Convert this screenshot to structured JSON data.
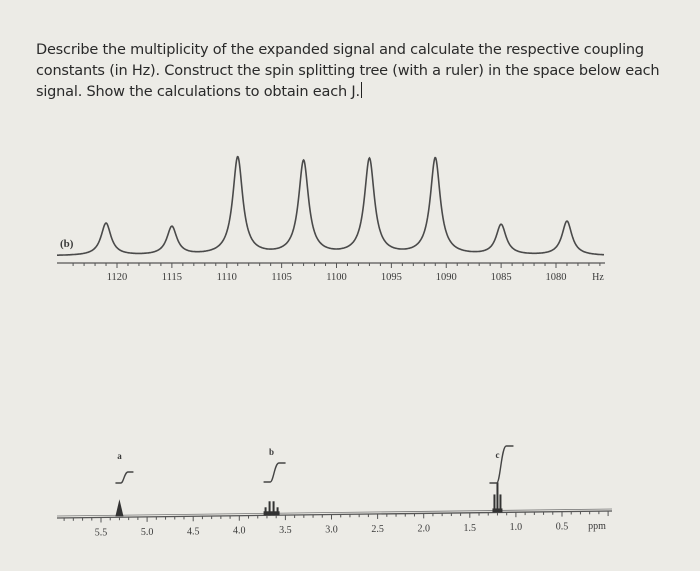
{
  "question": {
    "text": "Describe the multiplicity of the expanded signal and calculate the respective coupling constants (in Hz). Construct the spin splitting tree (with a ruler) in the space below each signal. Show the calculations to obtain each J."
  },
  "chart_data": [
    {
      "type": "line",
      "title": "Expanded signal (b)",
      "panel_label": "(b)",
      "xlabel": "Hz",
      "ylabel": "",
      "x_reversed": true,
      "xlim": [
        1124,
        1076
      ],
      "tick_labels": [
        "1120",
        "1115",
        "1110",
        "1105",
        "1100",
        "1095",
        "1090",
        "1085",
        "1080",
        "Hz"
      ],
      "ticks": [
        1120,
        1115,
        1110,
        1105,
        1100,
        1095,
        1090,
        1085,
        1080
      ],
      "grid": false,
      "peaks": [
        {
          "x": 1121.0,
          "relative_height": 0.33
        },
        {
          "x": 1115.0,
          "relative_height": 0.29
        },
        {
          "x": 1109.0,
          "relative_height": 1.0
        },
        {
          "x": 1103.0,
          "relative_height": 0.96
        },
        {
          "x": 1097.0,
          "relative_height": 0.98
        },
        {
          "x": 1091.0,
          "relative_height": 0.99
        },
        {
          "x": 1085.0,
          "relative_height": 0.31
        },
        {
          "x": 1079.0,
          "relative_height": 0.35
        }
      ]
    },
    {
      "type": "line",
      "title": "1H NMR spectrum",
      "xlabel": "ppm",
      "ylabel": "",
      "x_reversed": true,
      "xlim": [
        6.0,
        0.1
      ],
      "tick_labels": [
        "5.5",
        "5.0",
        "4.5",
        "4.0",
        "3.5",
        "3.0",
        "2.5",
        "2.0",
        "1.5",
        "1.0",
        "0.5",
        "ppm"
      ],
      "ticks": [
        5.5,
        5.0,
        4.5,
        4.0,
        3.5,
        3.0,
        2.5,
        2.0,
        1.5,
        1.0,
        0.5
      ],
      "grid": false,
      "signals": [
        {
          "label": "a",
          "ppm": 5.3,
          "relative_height": 0.3,
          "integral_step": "small"
        },
        {
          "label": "b",
          "ppm": 3.65,
          "relative_height": 0.35,
          "integral_step": "medium"
        },
        {
          "label": "c",
          "ppm": 1.2,
          "relative_height": 0.85,
          "integral_step": "large"
        }
      ]
    }
  ]
}
